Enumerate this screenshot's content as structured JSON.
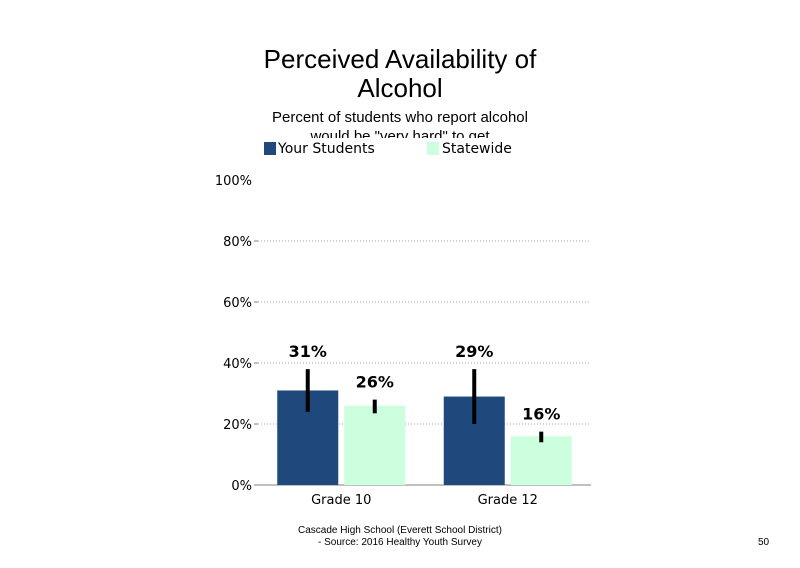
{
  "chart_data": {
    "type": "bar",
    "title_lines": [
      "Perceived Availability of",
      "Alcohol"
    ],
    "subtitle_lines": [
      "Percent of students who report alcohol",
      "would be \"very hard\" to get"
    ],
    "categories": [
      "Grade 10",
      "Grade 12"
    ],
    "series": [
      {
        "name": "Your Students",
        "values": [
          31,
          29
        ],
        "error_low": [
          24,
          20
        ],
        "error_high": [
          38,
          38
        ],
        "labels": [
          "31%",
          "29%"
        ],
        "color": "#1f497d"
      },
      {
        "name": "Statewide",
        "values": [
          26,
          16
        ],
        "error_low": [
          23.5,
          14
        ],
        "error_high": [
          28,
          17.5
        ],
        "labels": [
          "26%",
          "16%"
        ],
        "color": "#ccffdd"
      }
    ],
    "y_ticks": [
      0,
      20,
      40,
      60,
      80,
      100
    ],
    "y_tick_labels": [
      "0%",
      "20%",
      "40%",
      "60%",
      "80%",
      "100%"
    ],
    "ylim": [
      0,
      100
    ],
    "grid": true,
    "legend": "top"
  },
  "footer": {
    "line1": "Cascade High School (Everett School District)",
    "line2": "- Source: 2016 Healthy  Youth Survey"
  },
  "page_number": "50"
}
